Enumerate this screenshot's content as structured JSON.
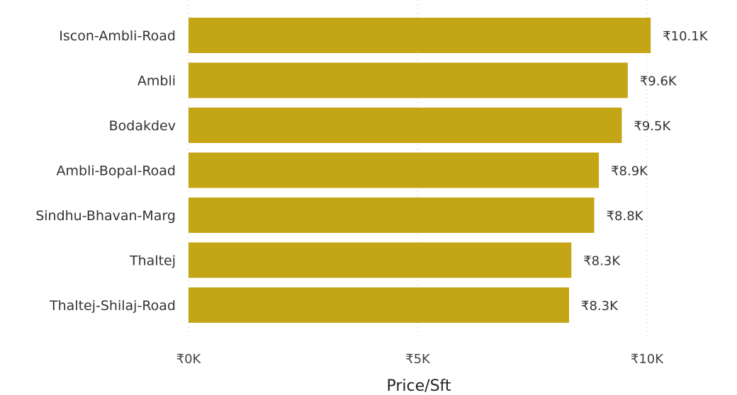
{
  "chart_data": {
    "type": "bar",
    "orientation": "horizontal",
    "categories": [
      "Iscon-Ambli-Road",
      "Ambli",
      "Bodakdev",
      "Ambli-Bopal-Road",
      "Sindhu-Bhavan-Marg",
      "Thaltej",
      "Thaltej-Shilaj-Road"
    ],
    "values": [
      10080,
      9580,
      9450,
      8950,
      8850,
      8350,
      8300
    ],
    "data_labels": [
      "₹10.1K",
      "₹9.6K",
      "₹9.5K",
      "₹8.9K",
      "₹8.8K",
      "₹8.3K",
      "₹8.3K"
    ],
    "xlabel": "Price/Sft",
    "ylabel": "",
    "title": "",
    "xlim": [
      0,
      10000
    ],
    "x_ticks": [
      0,
      5000,
      10000
    ],
    "x_tick_labels": [
      "₹0K",
      "₹5K",
      "₹10K"
    ],
    "grid": "vertical dotted",
    "bar_color": "#c4a516"
  }
}
